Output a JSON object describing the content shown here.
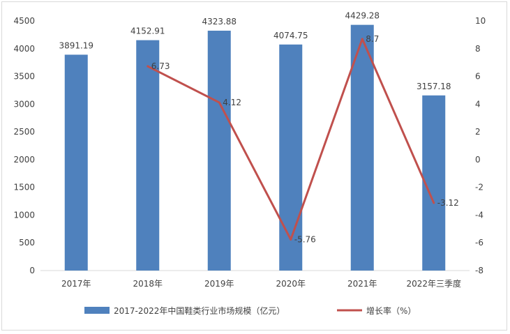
{
  "chart_data": {
    "type": "bar",
    "title": "",
    "categories": [
      "2017年",
      "2018年",
      "2019年",
      "2020年",
      "2021年",
      "2022年三季度"
    ],
    "series": [
      {
        "name": "2017-2022年中国鞋类行业市场规模（亿元）",
        "kind": "bar",
        "axis": "left",
        "color": "#4f81bd",
        "values": [
          3891.19,
          4152.91,
          4323.88,
          4074.75,
          4429.28,
          3157.18
        ],
        "labels": [
          "3891.19",
          "4152.91",
          "4323.88",
          "4074.75",
          "4429.28",
          "3157.18"
        ]
      },
      {
        "name": "增长率（%）",
        "kind": "line",
        "axis": "right",
        "color": "#c0504d",
        "values": [
          null,
          6.73,
          4.12,
          -5.76,
          8.7,
          -3.12
        ],
        "labels": [
          "",
          "6.73",
          "4.12",
          "-5.76",
          "8.7",
          "-3.12"
        ]
      }
    ],
    "y_left": {
      "min": 0,
      "max": 4500,
      "step": 500,
      "ticks": [
        "0",
        "500",
        "1000",
        "1500",
        "2000",
        "2500",
        "3000",
        "3500",
        "4000",
        "4500"
      ]
    },
    "y_right": {
      "min": -8,
      "max": 10,
      "step": 2,
      "ticks": [
        "-8",
        "-6",
        "-4",
        "-2",
        "0",
        "2",
        "4",
        "6",
        "8",
        "10"
      ]
    },
    "grid": false,
    "legend_position": "bottom"
  }
}
